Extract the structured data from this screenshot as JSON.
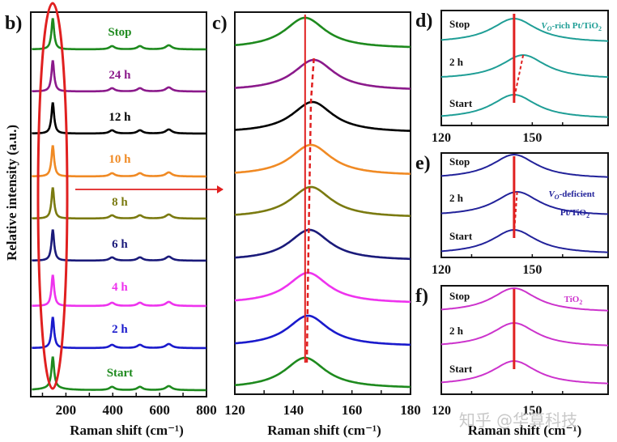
{
  "chart_data": [
    {
      "id": "b",
      "panel_label": "b)",
      "type": "line",
      "xlabel": "Raman shift (cm⁻¹)",
      "ylabel": "Relative intensity (a.u.)",
      "xlim": [
        50,
        800
      ],
      "xticks": [
        200,
        400,
        600,
        800
      ],
      "peaks_cm": [
        144,
        397,
        516,
        639
      ],
      "series": [
        {
          "name": "Stop",
          "color": "#1e8a1e"
        },
        {
          "name": "24 h",
          "color": "#8b1a8b"
        },
        {
          "name": "12 h",
          "color": "#000000"
        },
        {
          "name": "10 h",
          "color": "#f08a24"
        },
        {
          "name": "8 h",
          "color": "#7a7a10"
        },
        {
          "name": "6 h",
          "color": "#1a1a7a"
        },
        {
          "name": "4 h",
          "color": "#ee33ee"
        },
        {
          "name": "2 h",
          "color": "#1a1acc"
        },
        {
          "name": "Start",
          "color": "#1e8a1e"
        }
      ],
      "annotation": "Red ellipse highlights Eg peak near 144 cm⁻¹; arrow points to panel c"
    },
    {
      "id": "c",
      "panel_label": "c)",
      "type": "line",
      "xlabel": "Raman shift (cm⁻¹)",
      "xlim": [
        120,
        180
      ],
      "xticks": [
        120,
        140,
        160,
        180
      ],
      "reference_line_cm": 144,
      "series": [
        {
          "name": "Stop",
          "color": "#1e8a1e",
          "peak": 144.0
        },
        {
          "name": "24 h",
          "color": "#8b1a8b",
          "peak": 147.0
        },
        {
          "name": "12 h",
          "color": "#000000",
          "peak": 146.5
        },
        {
          "name": "10 h",
          "color": "#f08a24",
          "peak": 146.0
        },
        {
          "name": "8 h",
          "color": "#7a7a10",
          "peak": 146.0
        },
        {
          "name": "6 h",
          "color": "#1a1a7a",
          "peak": 145.5
        },
        {
          "name": "4 h",
          "color": "#ee33ee",
          "peak": 145.0
        },
        {
          "name": "2 h",
          "color": "#1a1acc",
          "peak": 145.0
        },
        {
          "name": "Start",
          "color": "#1e8a1e",
          "peak": 144.0
        }
      ]
    },
    {
      "id": "d",
      "panel_label": "d)",
      "type": "line",
      "title": "V_O-rich Pt/TiO2",
      "title_parts": {
        "v": "V",
        "sub_o": "O",
        "rest": "-rich Pt/TiO",
        "sub_2": "2"
      },
      "xlim": [
        120,
        175
      ],
      "xticks": [
        120,
        150
      ],
      "reference_line_cm": 144,
      "color": "#1f9e96",
      "series": [
        {
          "name": "Stop",
          "peak": 144
        },
        {
          "name": "2 h",
          "peak": 147
        },
        {
          "name": "Start",
          "peak": 144
        }
      ]
    },
    {
      "id": "e",
      "panel_label": "e)",
      "type": "line",
      "title": "V_O-deficient Pt/TiO2",
      "title_parts": {
        "v": "V",
        "sub_o": "O",
        "rest": "-deficient",
        "line2": "Pt/TiO",
        "sub_2": "2"
      },
      "xlim": [
        120,
        175
      ],
      "xticks": [
        120,
        150
      ],
      "reference_line_cm": 144,
      "color": "#22229a",
      "series": [
        {
          "name": "Stop",
          "peak": 144
        },
        {
          "name": "2 h",
          "peak": 145
        },
        {
          "name": "Start",
          "peak": 144
        }
      ]
    },
    {
      "id": "f",
      "panel_label": "f)",
      "type": "line",
      "title": "TiO2",
      "title_parts": {
        "rest": "TiO",
        "sub_2": "2"
      },
      "xlabel": "Raman shift (cm⁻¹)",
      "xlim": [
        120,
        175
      ],
      "xticks": [
        120,
        150
      ],
      "reference_line_cm": 144,
      "color": "#cc33cc",
      "series": [
        {
          "name": "Stop",
          "peak": 144
        },
        {
          "name": "2 h",
          "peak": 144
        },
        {
          "name": "Start",
          "peak": 144
        }
      ]
    }
  ],
  "watermark": "知乎 @华算科技",
  "colors": {
    "highlight": "#e02020"
  }
}
